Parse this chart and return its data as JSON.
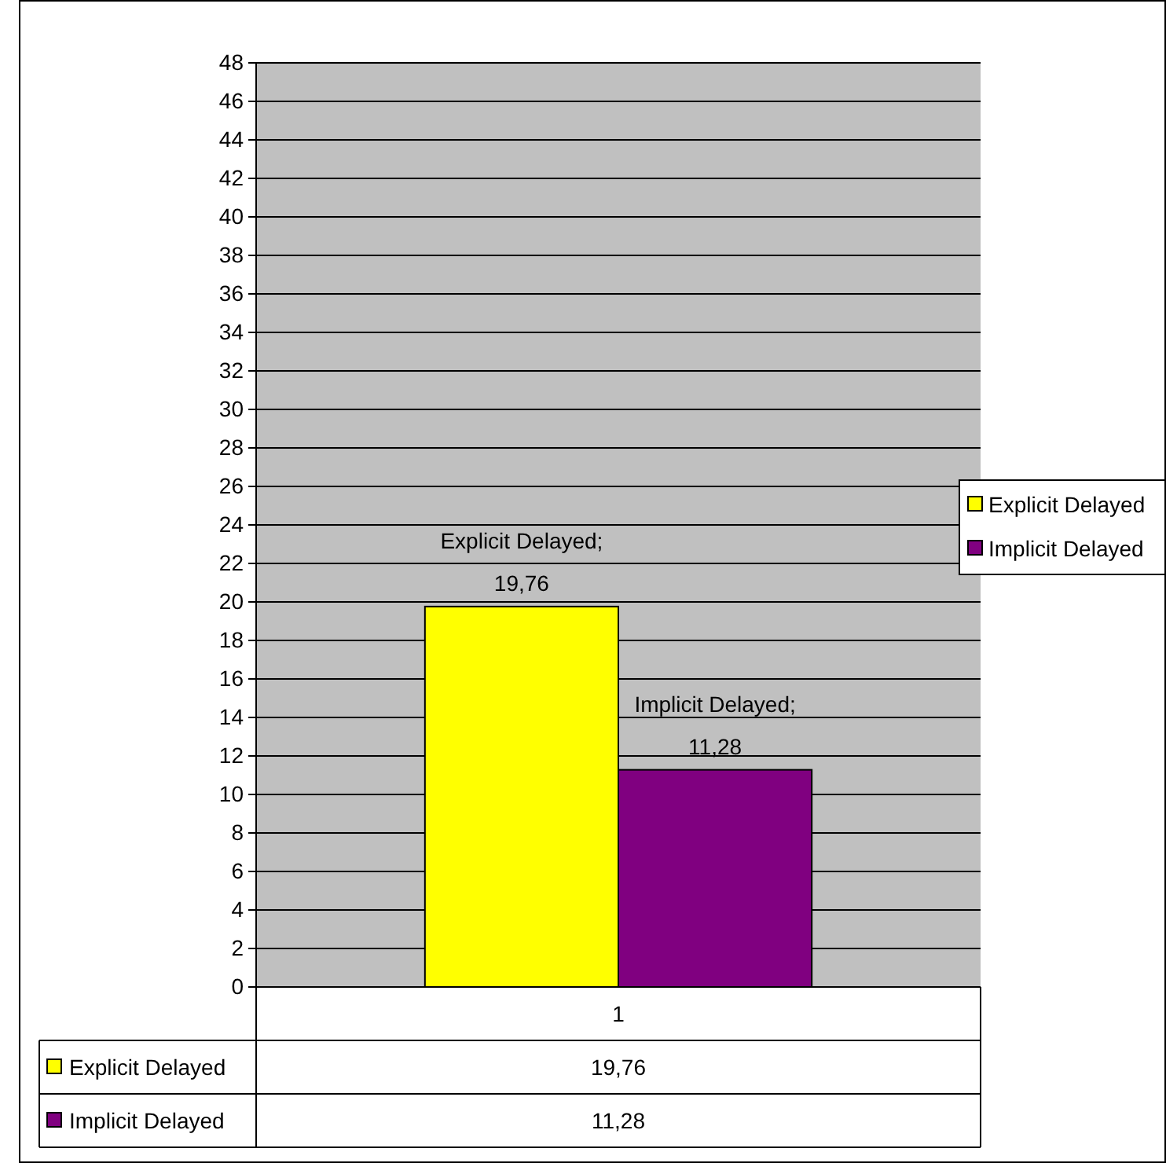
{
  "chart_data": {
    "type": "bar",
    "categories": [
      "1"
    ],
    "series": [
      {
        "name": "Explicit Delayed",
        "color": "#ffff00",
        "values": [
          19.76
        ],
        "value_labels": [
          "Explicit Delayed; 19,76"
        ]
      },
      {
        "name": "Implicit Delayed",
        "color": "#800080",
        "values": [
          11.28
        ],
        "value_labels": [
          "Implicit Delayed; 11,28"
        ]
      }
    ],
    "ylim": [
      0,
      48
    ],
    "yticks": [
      0,
      2,
      4,
      6,
      8,
      10,
      12,
      14,
      16,
      18,
      20,
      22,
      24,
      26,
      28,
      30,
      32,
      34,
      36,
      38,
      40,
      42,
      44,
      46,
      48
    ],
    "grid": "y",
    "legend": "right",
    "annotations": [
      "19,76",
      "11,28"
    ]
  }
}
